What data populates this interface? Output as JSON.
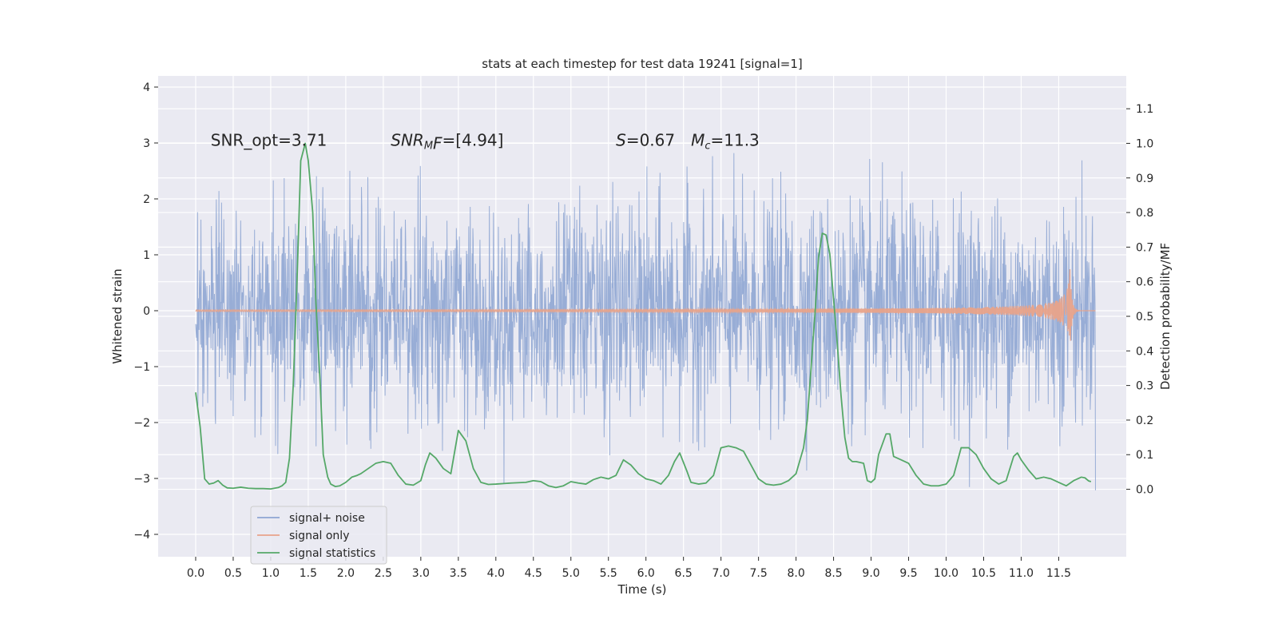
{
  "chart_data": {
    "type": "line",
    "title": "stats at each timestep for test data 19241 [signal=1]",
    "xlabel": "Time (s)",
    "ylabel": "Whitened strain",
    "y2label": "Detection probability/MF",
    "xlim": [
      -0.5,
      12.4
    ],
    "ylim": [
      -4.4,
      4.2
    ],
    "y2lim": [
      -0.195,
      1.195
    ],
    "x_ticks": [
      0.0,
      0.5,
      1.0,
      1.5,
      2.0,
      2.5,
      3.0,
      3.5,
      4.0,
      4.5,
      5.0,
      5.5,
      6.0,
      6.5,
      7.0,
      7.5,
      8.0,
      8.5,
      9.0,
      9.5,
      10.0,
      10.5,
      11.0,
      11.5
    ],
    "x_tick_labels": [
      "0.0",
      "0.5",
      "1.0",
      "1.5",
      "2.0",
      "2.5",
      "3.0",
      "3.5",
      "4.0",
      "4.5",
      "5.0",
      "5.5",
      "6.0",
      "6.5",
      "7.0",
      "7.5",
      "8.0",
      "8.5",
      "9.0",
      "9.5",
      "10.0",
      "10.5",
      "11.0",
      "11.5"
    ],
    "y_ticks": [
      -4,
      -3,
      -2,
      -1,
      0,
      1,
      2,
      3,
      4
    ],
    "y_tick_labels": [
      "−4",
      "−3",
      "−2",
      "−1",
      "0",
      "1",
      "2",
      "3",
      "4"
    ],
    "y2_ticks": [
      0.0,
      0.1,
      0.2,
      0.3,
      0.4,
      0.5,
      0.6,
      0.7,
      0.8,
      0.9,
      1.0,
      1.1
    ],
    "y2_tick_labels": [
      "0.0",
      "0.1",
      "0.2",
      "0.3",
      "0.4",
      "0.5",
      "0.6",
      "0.7",
      "0.8",
      "0.9",
      "1.0",
      "1.1"
    ],
    "grid": true,
    "legend_position": "lower-left",
    "annotations": [
      {
        "x": 0.2,
        "y": 2.95,
        "text": "SNR_opt=3.71"
      },
      {
        "x": 2.6,
        "y": 2.95,
        "text": "SNR",
        "sub": "M",
        "rest": "F=[4.94]",
        "italic": true
      },
      {
        "x": 5.6,
        "y": 2.95,
        "text": "S",
        "rest": "=0.67",
        "italic": true
      },
      {
        "x": 6.6,
        "y": 2.95,
        "text": "M",
        "sub": "c",
        "rest": "=11.3",
        "italic": true
      }
    ],
    "series": [
      {
        "name": "signal+ noise",
        "color": "#8fa6d3",
        "axis": "left",
        "style": "noise-envelope",
        "x_range": [
          0.0,
          11.99
        ],
        "typical_amplitude": 1.5,
        "max_amplitude": 3.8,
        "min_amplitude": -4.05
      },
      {
        "name": "signal only",
        "color": "#e8a38a",
        "axis": "left",
        "style": "chirp",
        "x_range": [
          0.0,
          11.99
        ],
        "merger_time": 11.65,
        "peak_amplitude": 0.75
      },
      {
        "name": "signal statistics",
        "color": "#55a868",
        "axis": "right",
        "x": [
          0.0,
          0.06,
          0.12,
          0.18,
          0.24,
          0.3,
          0.36,
          0.42,
          0.5,
          0.6,
          0.7,
          0.8,
          0.9,
          1.0,
          1.1,
          1.15,
          1.2,
          1.25,
          1.3,
          1.35,
          1.4,
          1.46,
          1.5,
          1.56,
          1.6,
          1.66,
          1.7,
          1.76,
          1.8,
          1.86,
          1.92,
          2.0,
          2.08,
          2.15,
          2.2,
          2.3,
          2.4,
          2.5,
          2.6,
          2.7,
          2.8,
          2.9,
          3.0,
          3.06,
          3.12,
          3.2,
          3.3,
          3.4,
          3.5,
          3.6,
          3.7,
          3.8,
          3.9,
          4.0,
          4.2,
          4.4,
          4.5,
          4.6,
          4.7,
          4.8,
          4.9,
          5.0,
          5.1,
          5.2,
          5.3,
          5.4,
          5.5,
          5.6,
          5.7,
          5.8,
          5.9,
          6.0,
          6.1,
          6.2,
          6.3,
          6.38,
          6.45,
          6.55,
          6.6,
          6.7,
          6.8,
          6.9,
          7.0,
          7.1,
          7.2,
          7.3,
          7.4,
          7.5,
          7.6,
          7.7,
          7.8,
          7.9,
          8.0,
          8.1,
          8.15,
          8.2,
          8.25,
          8.3,
          8.35,
          8.4,
          8.45,
          8.5,
          8.55,
          8.6,
          8.65,
          8.7,
          8.75,
          8.8,
          8.9,
          8.95,
          9.0,
          9.05,
          9.1,
          9.2,
          9.25,
          9.3,
          9.35,
          9.4,
          9.5,
          9.6,
          9.7,
          9.8,
          9.9,
          10.0,
          10.1,
          10.2,
          10.3,
          10.4,
          10.5,
          10.6,
          10.7,
          10.8,
          10.9,
          10.95,
          11.0,
          11.1,
          11.2,
          11.3,
          11.4,
          11.5,
          11.6,
          11.7,
          11.8,
          11.85,
          11.9,
          11.93
        ],
        "y": [
          0.28,
          0.18,
          0.03,
          0.015,
          0.018,
          0.025,
          0.012,
          0.004,
          0.003,
          0.006,
          0.003,
          0.002,
          0.002,
          0.001,
          0.005,
          0.01,
          0.02,
          0.09,
          0.3,
          0.6,
          0.95,
          1.0,
          0.95,
          0.8,
          0.55,
          0.3,
          0.1,
          0.035,
          0.015,
          0.008,
          0.01,
          0.02,
          0.035,
          0.04,
          0.045,
          0.06,
          0.075,
          0.08,
          0.075,
          0.04,
          0.015,
          0.012,
          0.025,
          0.07,
          0.105,
          0.09,
          0.06,
          0.045,
          0.17,
          0.14,
          0.06,
          0.02,
          0.014,
          0.015,
          0.018,
          0.02,
          0.025,
          0.022,
          0.01,
          0.005,
          0.01,
          0.022,
          0.018,
          0.015,
          0.028,
          0.035,
          0.03,
          0.04,
          0.085,
          0.07,
          0.045,
          0.03,
          0.025,
          0.015,
          0.04,
          0.08,
          0.105,
          0.05,
          0.02,
          0.015,
          0.018,
          0.04,
          0.12,
          0.125,
          0.12,
          0.11,
          0.07,
          0.03,
          0.015,
          0.012,
          0.015,
          0.025,
          0.045,
          0.12,
          0.2,
          0.35,
          0.5,
          0.67,
          0.74,
          0.735,
          0.68,
          0.55,
          0.42,
          0.27,
          0.15,
          0.09,
          0.08,
          0.08,
          0.075,
          0.025,
          0.02,
          0.03,
          0.1,
          0.16,
          0.16,
          0.095,
          0.09,
          0.085,
          0.075,
          0.04,
          0.015,
          0.01,
          0.01,
          0.015,
          0.04,
          0.12,
          0.12,
          0.1,
          0.06,
          0.03,
          0.015,
          0.025,
          0.095,
          0.105,
          0.085,
          0.055,
          0.03,
          0.035,
          0.03,
          0.02,
          0.01,
          0.025,
          0.035,
          0.033,
          0.024,
          0.022
        ]
      }
    ]
  },
  "legend": {
    "items": [
      {
        "label": "signal+ noise",
        "color": "#8fa6d3"
      },
      {
        "label": "signal only",
        "color": "#e8a38a"
      },
      {
        "label": "signal statistics",
        "color": "#55a868"
      }
    ]
  }
}
